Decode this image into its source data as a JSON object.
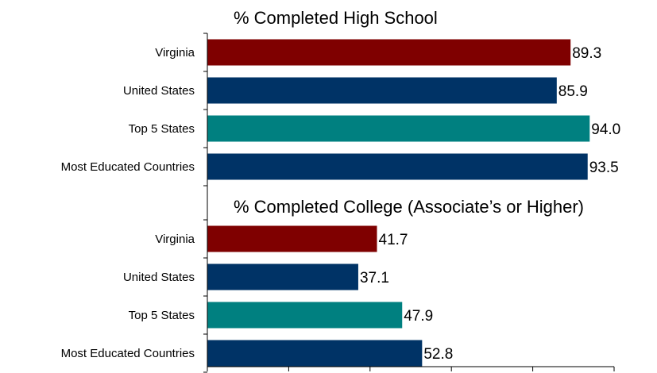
{
  "chart_data": [
    {
      "type": "bar",
      "orientation": "horizontal",
      "title": "% Completed High School",
      "categories": [
        "Virginia",
        "United States",
        "Top 5 States",
        "Most Educated Countries"
      ],
      "values": [
        89.3,
        85.9,
        94.0,
        93.5
      ],
      "value_labels": [
        "89.3",
        "85.9",
        "94.0",
        "93.5"
      ],
      "xlim": [
        0,
        100
      ],
      "grid": false,
      "legend": "none",
      "bar_colors": [
        "#7f0000",
        "#003366",
        "#008080",
        "#003366"
      ]
    },
    {
      "type": "bar",
      "orientation": "horizontal",
      "title": "% Completed College (Associate’s or Higher)",
      "categories": [
        "Virginia",
        "United States",
        "Top 5 States",
        "Most Educated Countries"
      ],
      "values": [
        41.7,
        37.1,
        47.9,
        52.8
      ],
      "value_labels": [
        "41.7",
        "37.1",
        "47.9",
        "52.8"
      ],
      "xlim": [
        0,
        100
      ],
      "grid": false,
      "legend": "none",
      "bar_colors": [
        "#7f0000",
        "#003366",
        "#008080",
        "#003366"
      ]
    }
  ]
}
